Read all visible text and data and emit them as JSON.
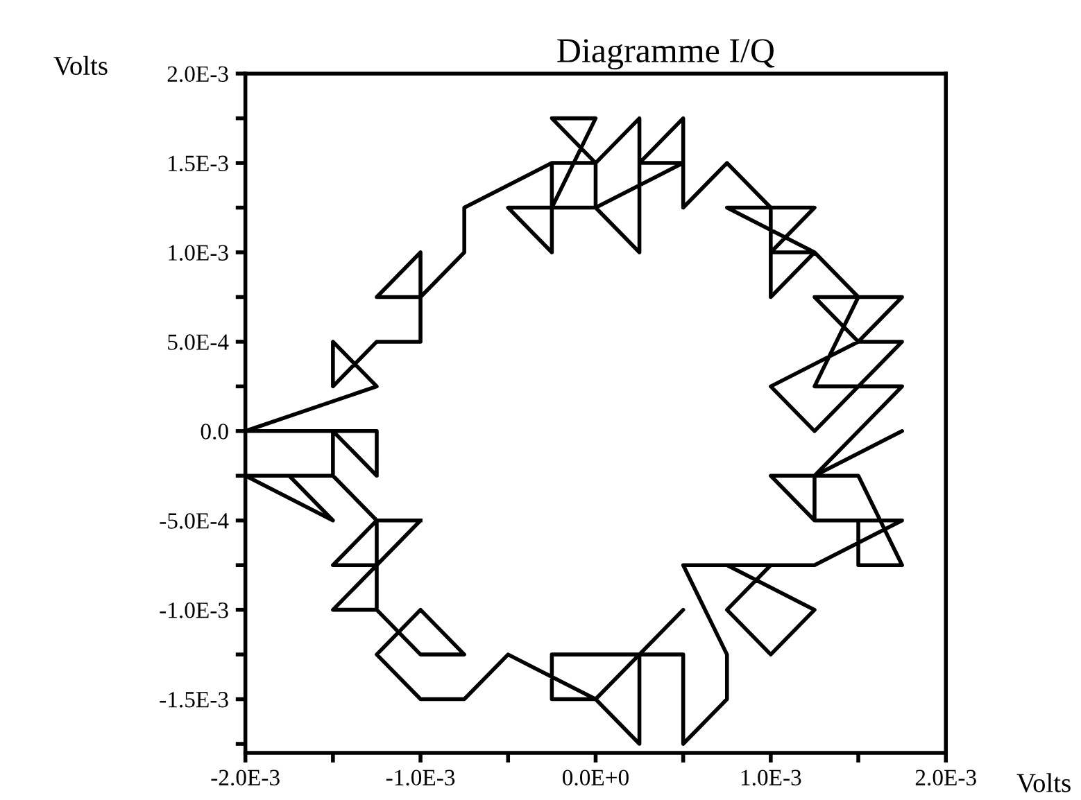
{
  "chart_data": {
    "type": "line",
    "title": "Diagramme I/Q",
    "xlabel": "Volts",
    "ylabel": "Volts",
    "x": [
      -0.001,
      -0.00125,
      -0.0015,
      -0.00125,
      -0.0015,
      -0.00125,
      -0.00125,
      -0.0015,
      -0.00175,
      -0.0015,
      -0.002,
      -0.0015,
      -0.0015,
      -0.00125,
      -0.00125,
      -0.0015,
      -0.002,
      -0.00125,
      -0.0015,
      -0.0015,
      -0.00125,
      -0.001,
      -0.001,
      -0.00125,
      -0.001,
      -0.001,
      -0.00075,
      -0.00075,
      -0.00025,
      -0.00025,
      -0.0005,
      0,
      0,
      -0.00025,
      -0.00025,
      0,
      -0.00025,
      0,
      0.00025,
      0.00025,
      0,
      0.0005,
      0.00025,
      0.0005,
      0.0005,
      0.00075,
      0.001,
      0.00075,
      0.00125,
      0.001,
      0.00125,
      0.001,
      0.001,
      0.00125,
      0.0015,
      0.00125,
      0.0015,
      0.00175,
      0.0015,
      0.00125,
      0.0015,
      0.00175,
      0.0015,
      0.001,
      0.00125,
      0.0015,
      0.00175,
      0.0015,
      0.00125,
      0.00175,
      0.00125,
      0.00125,
      0.001,
      0.0015,
      0.00175,
      0.0015,
      0.0015,
      0.00125,
      0.00175,
      0.00125,
      0.001,
      0.00075,
      0.001,
      0.00125,
      0.00075,
      0.001,
      0.0005,
      0.00075,
      0.00075,
      0.0005,
      0.0005,
      0.00025,
      0.00025,
      0,
      -0.00025,
      -0.00025,
      0.00025,
      0.0005,
      0,
      -0.0005,
      -0.00075,
      -0.001,
      -0.00125,
      -0.001,
      -0.00075,
      -0.001,
      -0.00125,
      -0.00125,
      -0.001,
      -0.00125
    ],
    "values": [
      -0.0005,
      -0.0005,
      -0.00075,
      -0.00075,
      -0.001,
      -0.001,
      -0.0005,
      -0.00025,
      -0.00025,
      -0.0005,
      -0.00025,
      -0.00025,
      0,
      0,
      -0.00025,
      0,
      0,
      0.00025,
      0.0005,
      0.00025,
      0.0005,
      0.0005,
      0.00075,
      0.00075,
      0.001,
      0.00075,
      0.001,
      0.00125,
      0.0015,
      0.001,
      0.00125,
      0.00125,
      0.0015,
      0.0015,
      0.00125,
      0.00175,
      0.00175,
      0.0015,
      0.00175,
      0.001,
      0.00125,
      0.0015,
      0.0015,
      0.00175,
      0.00125,
      0.0015,
      0.00125,
      0.00125,
      0.001,
      0.001,
      0.00125,
      0.00125,
      0.00075,
      0.001,
      0.00075,
      0.00075,
      0.0005,
      0.0005,
      0.00025,
      0.00025,
      0.00075,
      0.00075,
      0.0005,
      0.00025,
      0,
      0.00025,
      0.00025,
      0,
      -0.00025,
      0,
      -0.00025,
      -0.0005,
      -0.00025,
      -0.00025,
      -0.00075,
      -0.00075,
      -0.0005,
      -0.0005,
      -0.0005,
      -0.00075,
      -0.00075,
      -0.001,
      -0.00125,
      -0.001,
      -0.00075,
      -0.00075,
      -0.00075,
      -0.00125,
      -0.0015,
      -0.00175,
      -0.00125,
      -0.00125,
      -0.00175,
      -0.0015,
      -0.0015,
      -0.00125,
      -0.00125,
      -0.001,
      -0.0015,
      -0.00125,
      -0.0015,
      -0.0015,
      -0.00125,
      -0.001,
      -0.00125,
      -0.00125,
      -0.001,
      -0.00075,
      -0.0005,
      -0.0005
    ],
    "color": "#000000",
    "marker": "none",
    "line_style": "solid",
    "grid": false,
    "legend": false,
    "xlim": [
      -0.002,
      0.002
    ],
    "ylim": [
      -0.0018,
      0.002
    ],
    "xticks": [
      {
        "value": -0.002,
        "label": "-2.0E-3"
      },
      {
        "value": -0.0015,
        "label": null
      },
      {
        "value": -0.001,
        "label": "-1.0E-3"
      },
      {
        "value": -0.0005,
        "label": null
      },
      {
        "value": 0,
        "label": "0.0E+0"
      },
      {
        "value": 0.0005,
        "label": null
      },
      {
        "value": 0.001,
        "label": "1.0E-3"
      },
      {
        "value": 0.0015,
        "label": null
      },
      {
        "value": 0.002,
        "label": "2.0E-3"
      }
    ],
    "yticks": [
      {
        "value": -0.00175,
        "label": null
      },
      {
        "value": -0.0015,
        "label": "-1.5E-3"
      },
      {
        "value": -0.00125,
        "label": null
      },
      {
        "value": -0.001,
        "label": "-1.0E-3"
      },
      {
        "value": -0.00075,
        "label": null
      },
      {
        "value": -0.0005,
        "label": "-5.0E-4"
      },
      {
        "value": -0.00025,
        "label": null
      },
      {
        "value": 0,
        "label": "0.0"
      },
      {
        "value": 0.00025,
        "label": null
      },
      {
        "value": 0.0005,
        "label": "5.0E-4"
      },
      {
        "value": 0.00075,
        "label": null
      },
      {
        "value": 0.001,
        "label": "1.0E-3"
      },
      {
        "value": 0.00125,
        "label": null
      },
      {
        "value": 0.0015,
        "label": "1.5E-3"
      },
      {
        "value": 0.00175,
        "label": null
      },
      {
        "value": 0.002,
        "label": "2.0E-3"
      }
    ]
  }
}
